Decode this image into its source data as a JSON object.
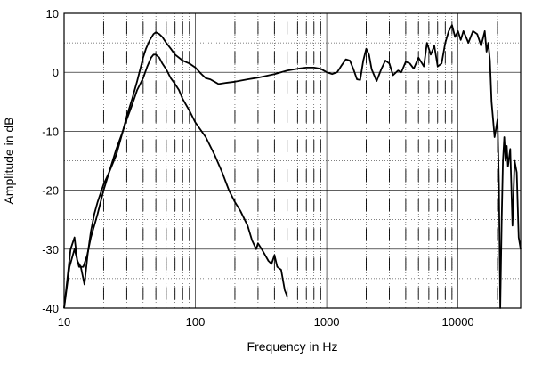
{
  "chart_data": {
    "type": "line",
    "xlabel": "Frequency in Hz",
    "ylabel": "Amplitude in dB",
    "x_scale": "log",
    "xlim": [
      10,
      30000
    ],
    "ylim": [
      -40,
      10
    ],
    "x_ticks": [
      {
        "value": 10,
        "label": "10"
      },
      {
        "value": 100,
        "label": "100"
      },
      {
        "value": 1000,
        "label": "1000"
      },
      {
        "value": 10000,
        "label": "10000"
      }
    ],
    "y_ticks": [
      {
        "value": 10,
        "label": "10"
      },
      {
        "value": 0,
        "label": "0"
      },
      {
        "value": -10,
        "label": "-10"
      },
      {
        "value": -20,
        "label": "-20"
      },
      {
        "value": -30,
        "label": "-30"
      },
      {
        "value": -40,
        "label": "-40"
      }
    ],
    "grid": true,
    "line_color": "#000000",
    "series": [
      {
        "points": [
          [
            10,
            -40
          ],
          [
            10.6,
            -35
          ],
          [
            11.2,
            -30
          ],
          [
            12,
            -28
          ],
          [
            12.6,
            -32
          ],
          [
            13.4,
            -33
          ],
          [
            14.3,
            -36
          ],
          [
            15.1,
            -31
          ],
          [
            16,
            -27
          ],
          [
            17,
            -24
          ],
          [
            18,
            -22
          ],
          [
            20,
            -19
          ],
          [
            22,
            -17
          ],
          [
            25,
            -13
          ],
          [
            28,
            -10
          ],
          [
            30,
            -7.5
          ],
          [
            33,
            -4.5
          ],
          [
            36,
            -1.5
          ],
          [
            38,
            0.5
          ],
          [
            40,
            2.5
          ],
          [
            42,
            4
          ],
          [
            45,
            5.5
          ],
          [
            48,
            6.5
          ],
          [
            50,
            6.8
          ],
          [
            53,
            6.5
          ],
          [
            56,
            6
          ],
          [
            60,
            5
          ],
          [
            65,
            4
          ],
          [
            70,
            3
          ],
          [
            80,
            2
          ],
          [
            90,
            1.5
          ],
          [
            100,
            0.8
          ],
          [
            110,
            -0.2
          ],
          [
            120,
            -1
          ],
          [
            130,
            -1.2
          ],
          [
            140,
            -1.6
          ],
          [
            150,
            -2
          ],
          [
            170,
            -1.8
          ],
          [
            200,
            -1.6
          ],
          [
            250,
            -1.2
          ],
          [
            300,
            -0.9
          ],
          [
            400,
            -0.3
          ],
          [
            500,
            0.3
          ],
          [
            600,
            0.6
          ],
          [
            700,
            0.8
          ],
          [
            800,
            0.8
          ],
          [
            900,
            0.6
          ],
          [
            1000,
            0
          ],
          [
            1100,
            -0.3
          ],
          [
            1200,
            0
          ],
          [
            1300,
            1.2
          ],
          [
            1400,
            2.2
          ],
          [
            1500,
            2
          ],
          [
            1600,
            0.5
          ],
          [
            1700,
            -1.2
          ],
          [
            1800,
            -1.3
          ],
          [
            1900,
            2
          ],
          [
            2000,
            4
          ],
          [
            2100,
            3
          ],
          [
            2200,
            0.5
          ],
          [
            2400,
            -1.5
          ],
          [
            2600,
            0.5
          ],
          [
            2800,
            2
          ],
          [
            3000,
            1.5
          ],
          [
            3200,
            -0.5
          ],
          [
            3500,
            0.3
          ],
          [
            3700,
            0
          ],
          [
            4000,
            1.8
          ],
          [
            4300,
            1.5
          ],
          [
            4600,
            0.6
          ],
          [
            5000,
            2.5
          ],
          [
            5500,
            1
          ],
          [
            5800,
            5
          ],
          [
            6200,
            3
          ],
          [
            6600,
            4.5
          ],
          [
            7000,
            1
          ],
          [
            7500,
            1.5
          ],
          [
            8000,
            5
          ],
          [
            8500,
            7
          ],
          [
            9000,
            8
          ],
          [
            9500,
            6
          ],
          [
            10000,
            7
          ],
          [
            10500,
            5.5
          ],
          [
            11000,
            7
          ],
          [
            11500,
            6
          ],
          [
            12000,
            5
          ],
          [
            13000,
            7
          ],
          [
            14000,
            6.5
          ],
          [
            15000,
            4.5
          ],
          [
            16000,
            7
          ],
          [
            16500,
            3.5
          ],
          [
            17000,
            5
          ],
          [
            17500,
            2
          ],
          [
            18000,
            -5
          ],
          [
            18500,
            -8
          ],
          [
            19000,
            -11
          ],
          [
            19500,
            -9.5
          ],
          [
            20000,
            -8
          ],
          [
            20500,
            -19
          ],
          [
            21000,
            -40
          ],
          [
            21500,
            -25
          ],
          [
            22000,
            -15
          ],
          [
            22500,
            -11
          ],
          [
            23000,
            -15
          ],
          [
            23500,
            -12.5
          ],
          [
            24000,
            -16
          ],
          [
            25000,
            -13
          ],
          [
            26000,
            -26
          ],
          [
            27000,
            -15
          ],
          [
            28000,
            -17
          ],
          [
            29000,
            -28
          ],
          [
            30000,
            -30
          ]
        ]
      },
      {
        "points": [
          [
            10,
            -40
          ],
          [
            11,
            -33
          ],
          [
            12,
            -30
          ],
          [
            13,
            -33
          ],
          [
            14,
            -33
          ],
          [
            15,
            -31
          ],
          [
            16,
            -28
          ],
          [
            18,
            -24
          ],
          [
            20,
            -20
          ],
          [
            22,
            -17
          ],
          [
            25,
            -14
          ],
          [
            28,
            -10
          ],
          [
            30,
            -8
          ],
          [
            33,
            -5.5
          ],
          [
            36,
            -3
          ],
          [
            40,
            -1
          ],
          [
            43,
            1
          ],
          [
            46,
            2.5
          ],
          [
            48,
            3
          ],
          [
            50,
            3
          ],
          [
            53,
            2.5
          ],
          [
            56,
            1.5
          ],
          [
            60,
            0.5
          ],
          [
            65,
            -1
          ],
          [
            70,
            -2
          ],
          [
            75,
            -3
          ],
          [
            80,
            -4.5
          ],
          [
            90,
            -6.5
          ],
          [
            100,
            -8.5
          ],
          [
            120,
            -11
          ],
          [
            140,
            -14
          ],
          [
            160,
            -17
          ],
          [
            180,
            -20
          ],
          [
            200,
            -22
          ],
          [
            220,
            -23.5
          ],
          [
            250,
            -26
          ],
          [
            270,
            -28.5
          ],
          [
            290,
            -30
          ],
          [
            300,
            -29
          ],
          [
            320,
            -30
          ],
          [
            340,
            -31
          ],
          [
            360,
            -32
          ],
          [
            380,
            -32.5
          ],
          [
            400,
            -31
          ],
          [
            420,
            -33
          ],
          [
            450,
            -33.5
          ],
          [
            480,
            -37
          ],
          [
            500,
            -38
          ]
        ]
      }
    ]
  }
}
